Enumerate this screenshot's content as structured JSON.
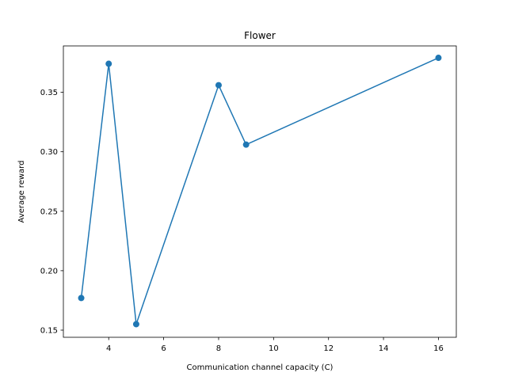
{
  "chart_data": {
    "type": "line",
    "title": "Flower",
    "xlabel": "Communication channel capacity (C)",
    "ylabel": "Average reward",
    "xlim": [
      2.35,
      16.65
    ],
    "ylim": [
      0.144,
      0.389
    ],
    "xticks": [
      4,
      6,
      8,
      10,
      12,
      14,
      16
    ],
    "xtick_labels": [
      "4",
      "6",
      "8",
      "10",
      "12",
      "14",
      "16"
    ],
    "yticks": [
      0.15,
      0.2,
      0.25,
      0.3,
      0.35
    ],
    "ytick_labels": [
      "0.15",
      "0.20",
      "0.25",
      "0.30",
      "0.35"
    ],
    "grid": false,
    "series": [
      {
        "color": "#1f77b4",
        "marker": "circle",
        "x": [
          3,
          4,
          5,
          8,
          9,
          16
        ],
        "y": [
          0.177,
          0.374,
          0.155,
          0.356,
          0.306,
          0.379
        ]
      }
    ]
  }
}
